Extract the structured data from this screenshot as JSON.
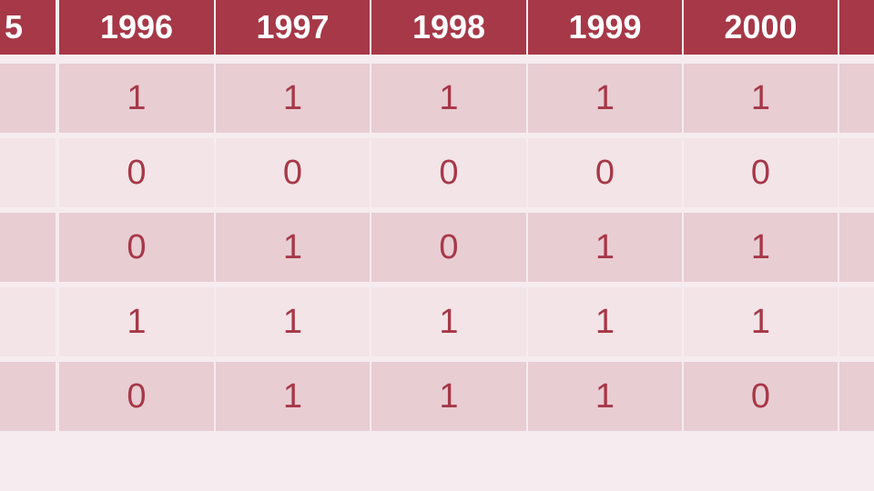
{
  "colors": {
    "header_bg": "#a63848",
    "header_text": "#ffffff",
    "cell_text": "#a63848",
    "row_odd_bg": "#e8cdd3",
    "row_even_bg": "#f3e4e8",
    "page_bg": "#f6ecef"
  },
  "chart_data": {
    "type": "table",
    "columns": [
      "5",
      "1996",
      "1997",
      "1998",
      "1999",
      "2000",
      ""
    ],
    "rows": [
      [
        "",
        "1",
        "1",
        "1",
        "1",
        "1",
        ""
      ],
      [
        "",
        "0",
        "0",
        "0",
        "0",
        "0",
        ""
      ],
      [
        "",
        "0",
        "1",
        "0",
        "1",
        "1",
        ""
      ],
      [
        "",
        "1",
        "1",
        "1",
        "1",
        "1",
        ""
      ],
      [
        "",
        "0",
        "1",
        "1",
        "1",
        "0",
        ""
      ]
    ]
  }
}
